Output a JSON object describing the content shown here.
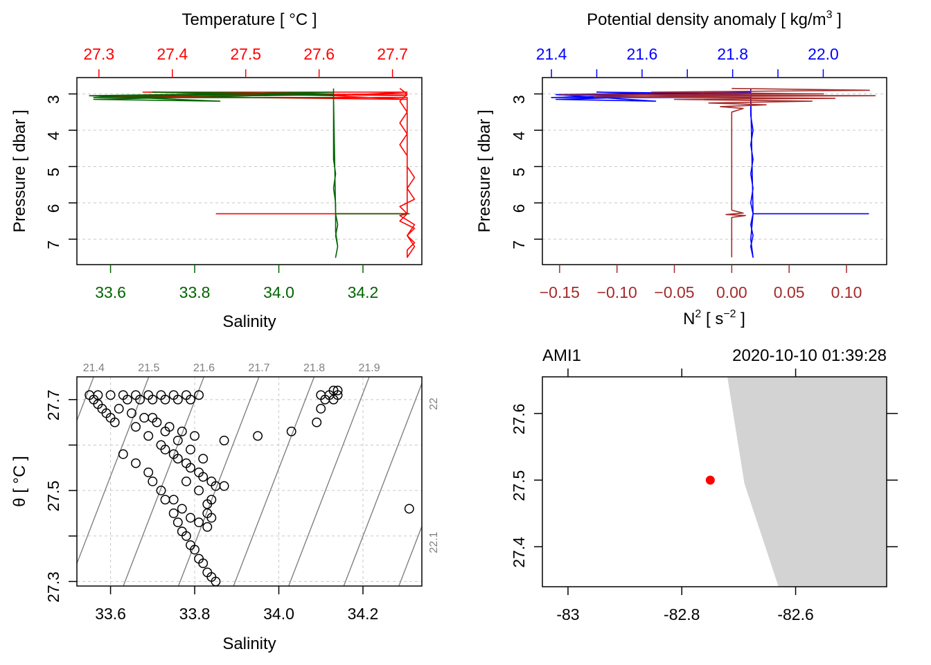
{
  "colors": {
    "temperature": "#FF0000",
    "salinity": "#006400",
    "density": "#0000FF",
    "n2": "#A52A2A",
    "grid": "#C8C8C8",
    "isopycnal": "#808080",
    "land": "#D3D3D3",
    "station": "#FF0000"
  },
  "chart_data": [
    {
      "id": "ts_profile",
      "type": "line",
      "title_top": "Temperature [ °C ]",
      "xlabel_bottom": "Salinity",
      "ylabel": "Pressure [ dbar ]",
      "temperature_ticks": [
        "27.3",
        "27.4",
        "27.5",
        "27.6",
        "27.7"
      ],
      "salinity_ticks": [
        "33.6",
        "33.8",
        "34.0",
        "34.2"
      ],
      "pressure_ticks": [
        "3",
        "4",
        "5",
        "6",
        "7"
      ],
      "ylim": [
        7.7,
        2.55
      ],
      "temperature_lim": [
        27.27,
        27.74
      ],
      "salinity_lim": [
        33.52,
        34.34
      ],
      "series": [
        {
          "name": "Temperature",
          "color_key": "temperature",
          "axis": "temperature",
          "points": [
            [
              27.71,
              2.85
            ],
            [
              27.72,
              3.0
            ],
            [
              27.71,
              3.2
            ],
            [
              27.72,
              3.5
            ],
            [
              27.71,
              3.8
            ],
            [
              27.72,
              4.1
            ],
            [
              27.71,
              4.4
            ],
            [
              27.72,
              4.7
            ],
            [
              27.72,
              5.0
            ],
            [
              27.73,
              5.3
            ],
            [
              27.72,
              5.6
            ],
            [
              27.73,
              5.9
            ],
            [
              27.71,
              6.1
            ],
            [
              27.72,
              6.3
            ],
            [
              27.71,
              6.5
            ],
            [
              27.73,
              6.7
            ],
            [
              27.72,
              6.9
            ],
            [
              27.73,
              7.1
            ],
            [
              27.72,
              7.3
            ],
            [
              27.72,
              7.5
            ],
            [
              27.73,
              7.2
            ],
            [
              27.72,
              6.9
            ],
            [
              27.73,
              6.6
            ],
            [
              27.71,
              6.35
            ],
            [
              27.72,
              6.3
            ],
            [
              27.46,
              6.3
            ],
            [
              27.72,
              6.3
            ],
            [
              27.72,
              3.1
            ],
            [
              27.3,
              3.1
            ],
            [
              27.72,
              3.0
            ],
            [
              27.3,
              3.05
            ],
            [
              27.72,
              3.15
            ],
            [
              27.62,
              3.05
            ],
            [
              27.72,
              2.95
            ],
            [
              27.36,
              2.95
            ],
            [
              27.72,
              3.05
            ]
          ]
        },
        {
          "name": "Salinity",
          "color_key": "salinity",
          "axis": "salinity",
          "points": [
            [
              34.13,
              2.85
            ],
            [
              34.13,
              3.2
            ],
            [
              34.13,
              3.6
            ],
            [
              34.13,
              4.0
            ],
            [
              34.13,
              4.4
            ],
            [
              34.13,
              4.8
            ],
            [
              34.135,
              5.2
            ],
            [
              34.13,
              5.6
            ],
            [
              34.135,
              6.0
            ],
            [
              34.135,
              6.3
            ],
            [
              34.14,
              6.6
            ],
            [
              34.135,
              6.9
            ],
            [
              34.14,
              7.2
            ],
            [
              34.135,
              7.5
            ],
            [
              34.14,
              7.2
            ],
            [
              34.135,
              6.8
            ],
            [
              34.135,
              6.3
            ],
            [
              34.31,
              6.3
            ],
            [
              34.135,
              6.3
            ],
            [
              34.13,
              3.1
            ],
            [
              33.56,
              3.1
            ],
            [
              34.13,
              2.95
            ],
            [
              33.55,
              3.05
            ],
            [
              33.86,
              3.2
            ],
            [
              33.56,
              3.15
            ],
            [
              34.13,
              3.0
            ],
            [
              33.7,
              2.95
            ],
            [
              34.13,
              3.05
            ]
          ]
        }
      ]
    },
    {
      "id": "density_n2_profile",
      "type": "line",
      "title_top": "Potential density anomaly [ kg/m",
      "title_top_sup": "3",
      "title_top_end": " ]",
      "xlabel_bottom_main": "N",
      "xlabel_bottom_sup1": "2",
      "xlabel_bottom_mid": " [ s",
      "xlabel_bottom_sup2": "−2",
      "xlabel_bottom_end": " ]",
      "ylabel": "Pressure [ dbar ]",
      "density_ticks": [
        "21.4",
        "21.6",
        "21.8",
        "22.0"
      ],
      "n2_ticks": [
        "-0.15",
        "-0.10",
        "-0.05",
        "0.00",
        "0.05",
        "0.10"
      ],
      "pressure_ticks": [
        "3",
        "4",
        "5",
        "6",
        "7"
      ],
      "ylim": [
        7.7,
        2.55
      ],
      "density_lim": [
        21.38,
        22.14
      ],
      "n2_lim": [
        -0.165,
        0.135
      ],
      "series": [
        {
          "name": "Density",
          "color_key": "density",
          "axis": "density",
          "points": [
            [
              21.84,
              2.85
            ],
            [
              21.84,
              3.2
            ],
            [
              21.84,
              3.6
            ],
            [
              21.845,
              4.0
            ],
            [
              21.84,
              4.4
            ],
            [
              21.845,
              4.8
            ],
            [
              21.84,
              5.2
            ],
            [
              21.845,
              5.6
            ],
            [
              21.84,
              6.0
            ],
            [
              21.845,
              6.3
            ],
            [
              21.84,
              6.6
            ],
            [
              21.845,
              6.9
            ],
            [
              21.84,
              7.2
            ],
            [
              21.845,
              7.5
            ],
            [
              21.84,
              7.0
            ],
            [
              21.845,
              6.3
            ],
            [
              22.1,
              6.3
            ],
            [
              21.845,
              6.3
            ],
            [
              21.84,
              3.1
            ],
            [
              21.4,
              3.1
            ],
            [
              21.84,
              2.95
            ],
            [
              21.41,
              3.02
            ],
            [
              21.63,
              3.2
            ],
            [
              21.41,
              3.15
            ],
            [
              21.84,
              3.0
            ],
            [
              21.5,
              2.95
            ],
            [
              21.84,
              3.05
            ]
          ]
        },
        {
          "name": "N2",
          "color_key": "n2",
          "axis": "n2",
          "points": [
            [
              0.0,
              2.85
            ],
            [
              0.12,
              2.9
            ],
            [
              -0.07,
              2.95
            ],
            [
              0.08,
              3.0
            ],
            [
              -0.15,
              3.03
            ],
            [
              0.125,
              3.05
            ],
            [
              -0.12,
              3.08
            ],
            [
              0.09,
              3.12
            ],
            [
              -0.05,
              3.15
            ],
            [
              0.07,
              3.2
            ],
            [
              -0.02,
              3.25
            ],
            [
              0.03,
              3.3
            ],
            [
              -0.01,
              3.35
            ],
            [
              0.01,
              3.4
            ],
            [
              0.0,
              3.5
            ],
            [
              0.0,
              4.5
            ],
            [
              0.0,
              5.5
            ],
            [
              0.0,
              6.2
            ],
            [
              0.01,
              6.28
            ],
            [
              -0.005,
              6.32
            ],
            [
              0.012,
              6.35
            ],
            [
              0.0,
              6.4
            ],
            [
              0.0,
              7.0
            ],
            [
              0.0,
              7.5
            ]
          ]
        }
      ]
    },
    {
      "id": "ts_diagram",
      "type": "scatter",
      "xlabel": "Salinity",
      "ylabel": "θ [ °C ]",
      "x_ticks": [
        "33.6",
        "33.8",
        "34.0",
        "34.2"
      ],
      "y_ticks": [
        "27.3",
        "27.5",
        "27.7"
      ],
      "xlim": [
        33.52,
        34.34
      ],
      "ylim": [
        27.29,
        27.75
      ],
      "isopycnal_labels_top": [
        "21.4",
        "21.5",
        "21.6",
        "21.7",
        "21.8",
        "21.9"
      ],
      "isopycnal_labels_right": [
        "22",
        "22.1"
      ],
      "points": [
        [
          33.55,
          27.71
        ],
        [
          33.56,
          27.7
        ],
        [
          33.57,
          27.69
        ],
        [
          33.58,
          27.68
        ],
        [
          33.59,
          27.67
        ],
        [
          33.6,
          27.66
        ],
        [
          33.61,
          27.65
        ],
        [
          33.57,
          27.71
        ],
        [
          33.6,
          27.71
        ],
        [
          33.63,
          27.71
        ],
        [
          33.66,
          27.71
        ],
        [
          33.69,
          27.71
        ],
        [
          33.72,
          27.71
        ],
        [
          33.75,
          27.71
        ],
        [
          33.78,
          27.71
        ],
        [
          33.81,
          27.71
        ],
        [
          33.64,
          27.7
        ],
        [
          33.67,
          27.7
        ],
        [
          33.7,
          27.7
        ],
        [
          33.73,
          27.7
        ],
        [
          33.76,
          27.7
        ],
        [
          33.79,
          27.7
        ],
        [
          33.62,
          27.68
        ],
        [
          33.65,
          27.67
        ],
        [
          33.68,
          27.66
        ],
        [
          33.71,
          27.65
        ],
        [
          33.74,
          27.64
        ],
        [
          33.77,
          27.63
        ],
        [
          33.8,
          27.62
        ],
        [
          33.66,
          27.64
        ],
        [
          33.69,
          27.62
        ],
        [
          33.72,
          27.6
        ],
        [
          33.75,
          27.58
        ],
        [
          33.78,
          27.56
        ],
        [
          33.81,
          27.54
        ],
        [
          33.84,
          27.52
        ],
        [
          33.85,
          27.51
        ],
        [
          33.7,
          27.66
        ],
        [
          33.73,
          27.63
        ],
        [
          33.76,
          27.61
        ],
        [
          33.79,
          27.59
        ],
        [
          33.82,
          27.57
        ],
        [
          33.73,
          27.59
        ],
        [
          33.76,
          27.57
        ],
        [
          33.79,
          27.55
        ],
        [
          33.82,
          27.53
        ],
        [
          33.78,
          27.52
        ],
        [
          33.81,
          27.5
        ],
        [
          33.84,
          27.48
        ],
        [
          33.75,
          27.48
        ],
        [
          33.77,
          27.46
        ],
        [
          33.79,
          27.44
        ],
        [
          33.81,
          27.43
        ],
        [
          33.83,
          27.42
        ],
        [
          33.63,
          27.58
        ],
        [
          33.66,
          27.56
        ],
        [
          33.69,
          27.54
        ],
        [
          33.7,
          27.52
        ],
        [
          33.72,
          27.5
        ],
        [
          33.73,
          27.48
        ],
        [
          33.75,
          27.45
        ],
        [
          33.76,
          27.43
        ],
        [
          33.77,
          27.41
        ],
        [
          33.78,
          27.4
        ],
        [
          33.79,
          27.38
        ],
        [
          33.8,
          27.37
        ],
        [
          33.81,
          27.35
        ],
        [
          33.82,
          27.34
        ],
        [
          33.83,
          27.32
        ],
        [
          33.84,
          27.31
        ],
        [
          33.85,
          27.3
        ],
        [
          33.87,
          27.61
        ],
        [
          33.95,
          27.62
        ],
        [
          34.03,
          27.63
        ],
        [
          34.09,
          27.65
        ],
        [
          34.1,
          27.68
        ],
        [
          34.11,
          27.7
        ],
        [
          34.12,
          27.71
        ],
        [
          34.13,
          27.72
        ],
        [
          34.14,
          27.72
        ],
        [
          34.1,
          27.71
        ],
        [
          34.13,
          27.7
        ],
        [
          34.14,
          27.71
        ],
        [
          34.31,
          27.46
        ],
        [
          33.87,
          27.51
        ],
        [
          33.83,
          27.47
        ],
        [
          33.84,
          27.44
        ],
        [
          33.83,
          27.45
        ]
      ]
    },
    {
      "id": "station_map",
      "type": "scatter",
      "station_name": "AMI1",
      "timestamp": "2020-10-10 01:39:28",
      "x_ticks": [
        "-83",
        "-82.8",
        "-82.6"
      ],
      "y_ticks": [
        "27.4",
        "27.5",
        "27.6"
      ],
      "xlim": [
        -83.045,
        -82.44
      ],
      "ylim": [
        27.34,
        27.655
      ],
      "station": [
        -82.75,
        27.5
      ],
      "land_polygon": [
        [
          -82.72,
          27.655
        ],
        [
          -82.44,
          27.655
        ],
        [
          -82.44,
          27.34
        ],
        [
          -82.63,
          27.34
        ],
        [
          -82.69,
          27.495
        ]
      ]
    }
  ]
}
